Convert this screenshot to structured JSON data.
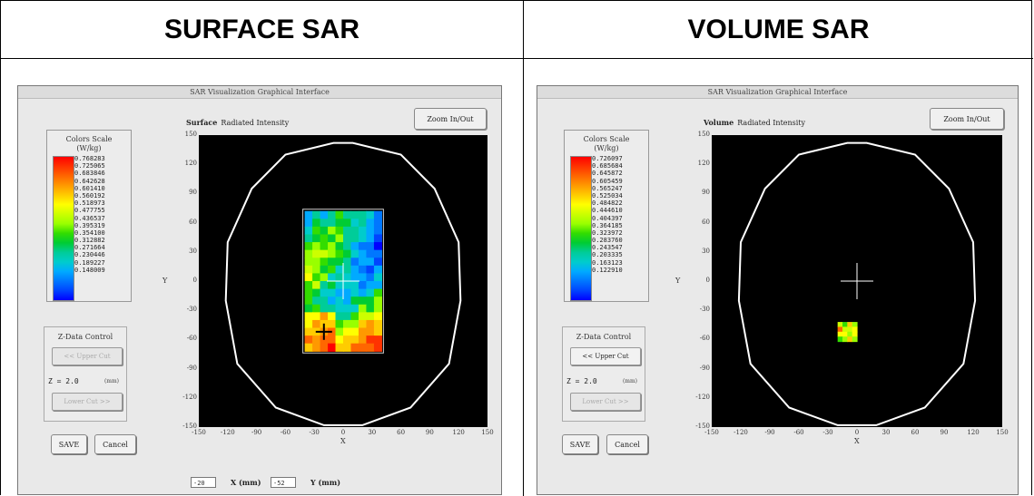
{
  "headers": {
    "left": "SURFACE SAR",
    "right": "VOLUME SAR"
  },
  "window_title": "SAR Visualization Graphical Interface",
  "colors": {
    "plot_bg": "#000000",
    "head_outline": "#ffffff",
    "cursor": "#ffffff"
  },
  "left": {
    "color_scale": {
      "title_line1": "Colors Scale",
      "title_line2": "(W/kg)",
      "labels": [
        "0.768283",
        "0.725065",
        "0.683846",
        "0.642628",
        "0.601410",
        "0.560192",
        "0.518973",
        "0.477755",
        "0.436537",
        "0.395319",
        "0.354100",
        "0.312882",
        "0.271664",
        "0.230446",
        "0.189227",
        "0.148009"
      ]
    },
    "plot_label_bold": "Surface",
    "plot_label_rest": "Radiated Intensity",
    "zoom_label": "Zoom In/Out",
    "z_control": {
      "title": "Z-Data Control",
      "upper_label": "<< Upper Cut",
      "upper_enabled": false,
      "lower_label": "Lower Cut >>",
      "lower_enabled": false,
      "z_value": "Z = 2.0",
      "z_unit": "(mm)"
    },
    "save_label": "SAVE",
    "cancel_label": "Cancel",
    "coords": {
      "x_value": "-20",
      "x_label": "X (mm)",
      "y_value": "-52",
      "y_label": "Y (mm)"
    },
    "axis": {
      "x_ticks": [
        "-150",
        "-120",
        "-90",
        "-60",
        "-30",
        "0",
        "30",
        "60",
        "90",
        "120",
        "150"
      ],
      "y_ticks": [
        "150",
        "120",
        "90",
        "60",
        "30",
        "0",
        "-30",
        "-60",
        "-90",
        "-120",
        "-150"
      ],
      "xlabel": "X",
      "ylabel": "Y"
    },
    "cursor": {
      "x": 0,
      "y": 0
    },
    "marker": {
      "x": -20,
      "y": -52
    },
    "sar_region": {
      "x": [
        -40,
        40
      ],
      "y": [
        -72,
        72
      ]
    }
  },
  "right": {
    "color_scale": {
      "title_line1": "Colors Scale",
      "title_line2": "(W/kg)",
      "labels": [
        "0.726097",
        "0.685684",
        "0.645872",
        "0.605459",
        "0.565247",
        "0.525034",
        "0.484822",
        "0.444610",
        "0.404397",
        "0.364185",
        "0.323972",
        "0.283760",
        "0.243547",
        "0.203335",
        "0.163123",
        "0.122910"
      ]
    },
    "plot_label_bold": "Volume",
    "plot_label_rest": "Radiated Intensity",
    "zoom_label": "Zoom In/Out",
    "z_control": {
      "title": "Z-Data Control",
      "upper_label": "<< Upper Cut",
      "upper_enabled": true,
      "lower_label": "Lower Cut >>",
      "lower_enabled": false,
      "z_value": "Z = 2.0",
      "z_unit": "(mm)"
    },
    "save_label": "SAVE",
    "cancel_label": "Cancel",
    "axis": {
      "x_ticks": [
        "-150",
        "-120",
        "-90",
        "-60",
        "-30",
        "0",
        "30",
        "60",
        "90",
        "120",
        "150"
      ],
      "y_ticks": [
        "150",
        "120",
        "90",
        "60",
        "30",
        "0",
        "-30",
        "-60",
        "-90",
        "-120",
        "-150"
      ],
      "xlabel": "X",
      "ylabel": "Y"
    },
    "cursor": {
      "x": 0,
      "y": 0
    },
    "sar_region": {
      "x": [
        -20,
        0
      ],
      "y": [
        -62,
        -42
      ]
    }
  }
}
